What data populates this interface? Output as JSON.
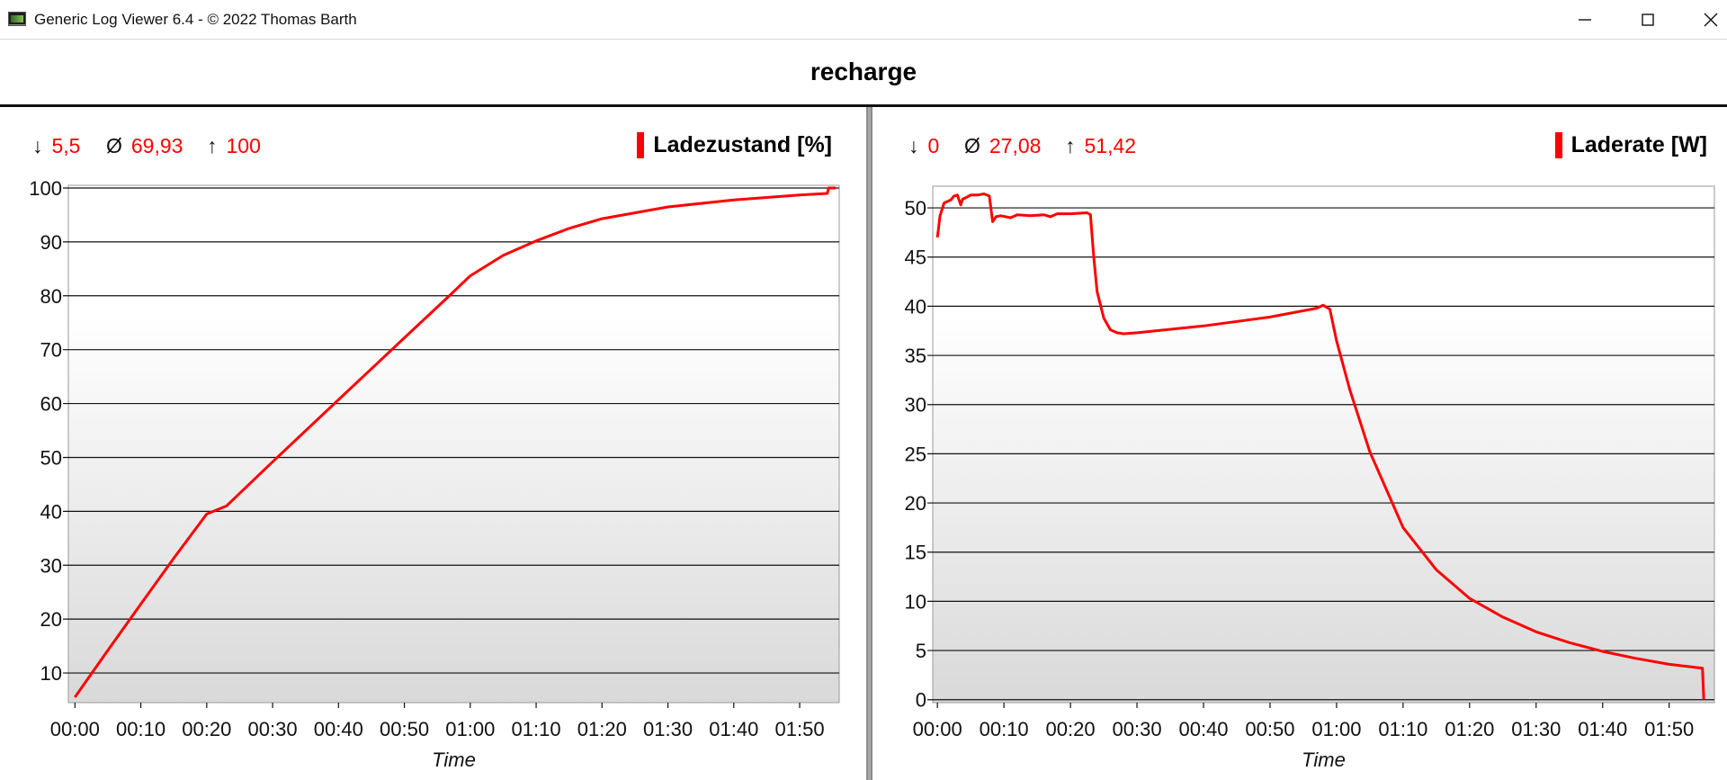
{
  "window": {
    "title": "Generic Log Viewer 6.4 - © 2022 Thomas Barth",
    "icon": "app-logview-icon",
    "controls": [
      "minimize-icon",
      "maximize-icon",
      "close-icon"
    ]
  },
  "page": {
    "title": "recharge"
  },
  "colors": {
    "series": "#ff0000",
    "grid": "#111111",
    "plot_top": "#ffffff",
    "plot_bottom": "#d9d9d9"
  },
  "panels": [
    {
      "stats": {
        "min_symbol": "↓",
        "min": "5,5",
        "avg_symbol": "Ø",
        "avg": "69,93",
        "max_symbol": "↑",
        "max": "100"
      },
      "legend": "Ladezustand [%]"
    },
    {
      "stats": {
        "min_symbol": "↓",
        "min": "0",
        "avg_symbol": "Ø",
        "avg": "27,08",
        "max_symbol": "↑",
        "max": "51,42"
      },
      "legend": "Laderate [W]"
    }
  ],
  "chart_data": [
    {
      "type": "line",
      "xlabel": "Time",
      "x_unit": "minutes",
      "x_tick_labels": [
        "00:00",
        "00:10",
        "00:20",
        "00:30",
        "00:40",
        "00:50",
        "01:00",
        "01:10",
        "01:20",
        "01:30",
        "01:40",
        "01:50"
      ],
      "y_ticks": [
        10,
        20,
        30,
        40,
        50,
        60,
        70,
        80,
        90,
        100
      ],
      "ylim": [
        4.5,
        100.5
      ],
      "xlim": [
        -1,
        116
      ],
      "grid": true,
      "legend_position": "top-right",
      "series": [
        {
          "name": "Ladezustand [%]",
          "x": [
            0,
            5,
            10,
            15,
            20,
            23,
            30,
            40,
            50,
            57,
            60,
            65,
            70,
            75,
            80,
            90,
            100,
            110,
            114.2,
            114.4,
            114.8,
            115.5
          ],
          "y": [
            5.5,
            14.2,
            22.8,
            31.3,
            39.5,
            41,
            49.2,
            60.7,
            72.2,
            80.2,
            83.7,
            87.5,
            90.2,
            92.5,
            94.3,
            96.5,
            97.8,
            98.7,
            99.0,
            100,
            100,
            100
          ]
        }
      ]
    },
    {
      "type": "line",
      "xlabel": "Time",
      "x_unit": "minutes",
      "x_tick_labels": [
        "00:00",
        "00:10",
        "00:20",
        "00:30",
        "00:40",
        "00:50",
        "01:00",
        "01:10",
        "01:20",
        "01:30",
        "01:40",
        "01:50"
      ],
      "y_ticks": [
        0,
        5,
        10,
        15,
        20,
        25,
        30,
        35,
        40,
        45,
        50
      ],
      "ylim": [
        -0.3,
        52.2
      ],
      "xlim": [
        -0.7,
        116.8
      ],
      "grid": true,
      "legend_position": "top-right",
      "series": [
        {
          "name": "Laderate [W]",
          "x": [
            0,
            0.4,
            1,
            2,
            2.5,
            3,
            3.5,
            3.8,
            4.2,
            5,
            6,
            7,
            7.8,
            8.3,
            8.8,
            9.5,
            11,
            12,
            14,
            16,
            17,
            18,
            20,
            22.5,
            23,
            23.5,
            24,
            25,
            26,
            27,
            28,
            30,
            40,
            50,
            57,
            58,
            59,
            60,
            62,
            65,
            70,
            75,
            80,
            85,
            90,
            95,
            100,
            105,
            110,
            115,
            115.2
          ],
          "y": [
            47,
            49.2,
            50.5,
            50.8,
            51.2,
            51.3,
            50.3,
            50.9,
            51.0,
            51.3,
            51.3,
            51.42,
            51.2,
            48.6,
            49.1,
            49.2,
            49.0,
            49.3,
            49.2,
            49.3,
            49.1,
            49.4,
            49.4,
            49.5,
            49.3,
            45,
            41.5,
            38.8,
            37.6,
            37.3,
            37.2,
            37.3,
            38.0,
            38.9,
            39.8,
            40.1,
            39.7,
            36.5,
            31.5,
            25.2,
            17.5,
            13.2,
            10.3,
            8.4,
            6.9,
            5.8,
            4.9,
            4.2,
            3.6,
            3.2,
            0
          ]
        }
      ]
    }
  ]
}
